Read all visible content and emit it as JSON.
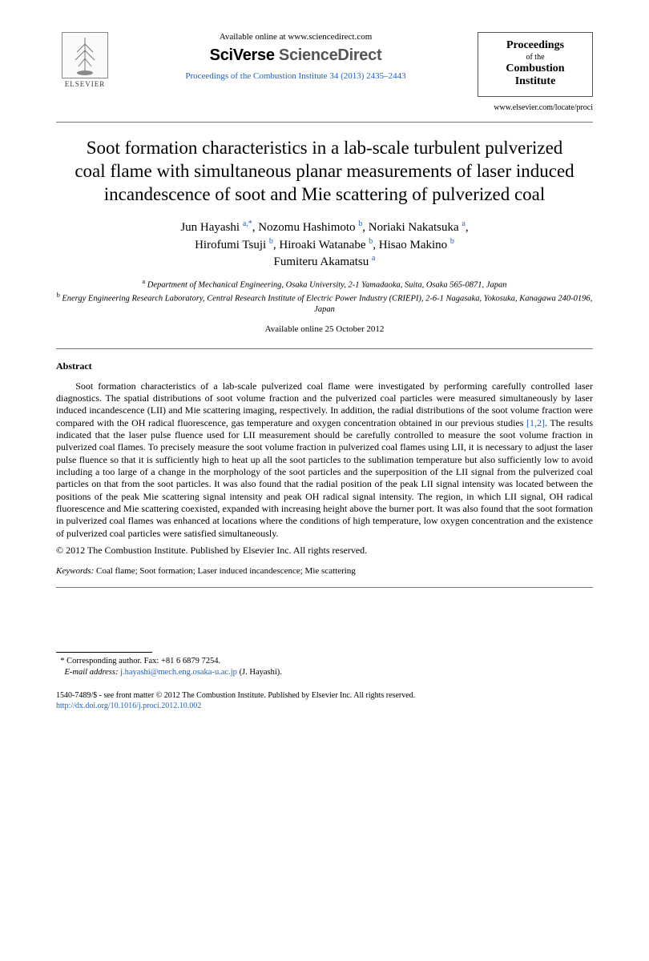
{
  "header": {
    "publisher_logo_label": "ELSEVIER",
    "available_online": "Available online at www.sciencedirect.com",
    "platform_prefix": "SciVerse ",
    "platform_suffix": "ScienceDirect",
    "journal_reference": "Proceedings of the Combustion Institute 34 (2013) 2435–2443",
    "journal_box": {
      "line1": "Proceedings",
      "line2": "of the",
      "line3": "Combustion",
      "line4": "Institute"
    },
    "locate": "www.elsevier.com/locate/proci"
  },
  "title": "Soot formation characteristics in a lab-scale turbulent pulverized coal flame with simultaneous planar measurements of laser induced incandescence of soot and Mie scattering of pulverized coal",
  "authors": [
    {
      "name": "Jun Hayashi",
      "marks": "a,*"
    },
    {
      "name": "Nozomu Hashimoto",
      "marks": "b"
    },
    {
      "name": "Noriaki Nakatsuka",
      "marks": "a"
    },
    {
      "name": "Hirofumi Tsuji",
      "marks": "b"
    },
    {
      "name": "Hiroaki Watanabe",
      "marks": "b"
    },
    {
      "name": "Hisao Makino",
      "marks": "b"
    },
    {
      "name": "Fumiteru Akamatsu",
      "marks": "a"
    }
  ],
  "affiliations": {
    "a": "Department of Mechanical Engineering, Osaka University, 2-1 Yamadaoka, Suita, Osaka 565-0871, Japan",
    "b": "Energy Engineering Research Laboratory, Central Research Institute of Electric Power Industry (CRIEPI), 2-6-1 Nagasaka, Yokosuka, Kanagawa 240-0196, Japan"
  },
  "available_date": "Available online 25 October 2012",
  "abstract_heading": "Abstract",
  "abstract_text_pre": "Soot formation characteristics of a lab-scale pulverized coal flame were investigated by performing carefully controlled laser diagnostics. The spatial distributions of soot volume fraction and the pulverized coal particles were measured simultaneously by laser induced incandescence (LII) and Mie scattering imaging, respectively. In addition, the radial distributions of the soot volume fraction were compared with the OH radical fluorescence, gas temperature and oxygen concentration obtained in our previous studies ",
  "abstract_ref": "[1,2]",
  "abstract_text_post": ". The results indicated that the laser pulse fluence used for LII measurement should be carefully controlled to measure the soot volume fraction in pulverized coal flames. To precisely measure the soot volume fraction in pulverized coal flames using LII, it is necessary to adjust the laser pulse fluence so that it is sufficiently high to heat up all the soot particles to the sublimation temperature but also sufficiently low to avoid including a too large of a change in the morphology of the soot particles and the superposition of the LII signal from the pulverized coal particles on that from the soot particles. It was also found that the radial position of the peak LII signal intensity was located between the positions of the peak Mie scattering signal intensity and peak OH radical signal intensity. The region, in which LII signal, OH radical fluorescence and Mie scattering coexisted, expanded with increasing height above the burner port. It was also found that the soot formation in pulverized coal flames was enhanced at locations where the conditions of high temperature, low oxygen concentration and the existence of pulverized coal particles were satisfied simultaneously.",
  "copyright": "© 2012 The Combustion Institute. Published by Elsevier Inc. All rights reserved.",
  "keywords_label": "Keywords:",
  "keywords_values": " Coal flame; Soot formation; Laser induced incandescence; Mie scattering",
  "footnote": {
    "corresponding": "Corresponding author. Fax: +81 6 6879 7254.",
    "email_label": "E-mail address:",
    "email": "j.hayashi@mech.eng.osaka-u.ac.jp",
    "email_attr": " (J. Hayashi)."
  },
  "footer": {
    "issn_line": "1540-7489/$ - see front matter © 2012 The Combustion Institute. Published by Elsevier Inc. All rights reserved.",
    "doi": "http://dx.doi.org/10.1016/j.proci.2012.10.002"
  },
  "colors": {
    "link": "#2060c0",
    "text": "#000000",
    "rule": "#777777"
  }
}
